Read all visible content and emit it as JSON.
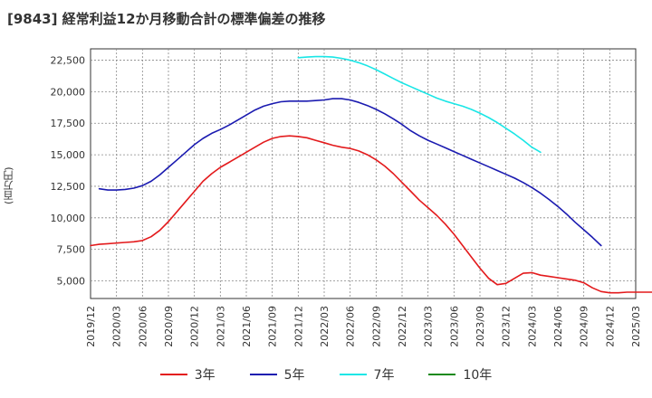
{
  "chart_data": {
    "type": "line",
    "title": "[9843]  経常利益12か月移動合計の標準偏差の推移",
    "ylabel": "(百万円)",
    "xlabel": "",
    "ylim": [
      3600,
      23400
    ],
    "y_ticks": [
      5000,
      7500,
      10000,
      12500,
      15000,
      17500,
      20000,
      22500
    ],
    "y_tick_labels": [
      "5,000",
      "7,500",
      "10,000",
      "12,500",
      "15,000",
      "17,500",
      "20,000",
      "22,500"
    ],
    "x_ticks": [
      "2019/12",
      "2020/03",
      "2020/06",
      "2020/09",
      "2020/12",
      "2021/03",
      "2021/06",
      "2021/09",
      "2021/12",
      "2022/03",
      "2022/06",
      "2022/09",
      "2022/12",
      "2023/03",
      "2023/06",
      "2023/09",
      "2023/12",
      "2024/03",
      "2024/06",
      "2024/09",
      "2024/12",
      "2025/03"
    ],
    "grid": true,
    "legend_position": "bottom",
    "x_start": "2019/12",
    "series": [
      {
        "name": "3年",
        "color": "#e31a1c",
        "start": "2019/12",
        "values": [
          7800,
          7900,
          7950,
          8000,
          8050,
          8100,
          8200,
          8500,
          9000,
          9700,
          10500,
          11300,
          12100,
          12900,
          13500,
          14000,
          14400,
          14800,
          15200,
          15600,
          16000,
          16300,
          16450,
          16500,
          16450,
          16350,
          16150,
          15950,
          15750,
          15600,
          15500,
          15300,
          15000,
          14600,
          14100,
          13500,
          12800,
          12100,
          11400,
          10800,
          10200,
          9500,
          8700,
          7800,
          6900,
          6000,
          5200,
          4700,
          4800,
          5200,
          5600,
          5650,
          5450,
          5350,
          5250,
          5150,
          5050,
          4850,
          4450,
          4150,
          4050,
          4050,
          4100,
          4100,
          4100,
          4100
        ]
      },
      {
        "name": "5年",
        "color": "#1a1ab0",
        "start": "2020/01",
        "values": [
          12300,
          12200,
          12200,
          12250,
          12350,
          12550,
          12900,
          13400,
          14000,
          14600,
          15200,
          15800,
          16300,
          16700,
          17000,
          17350,
          17750,
          18150,
          18550,
          18850,
          19050,
          19200,
          19250,
          19250,
          19250,
          19300,
          19350,
          19450,
          19450,
          19350,
          19150,
          18900,
          18600,
          18250,
          17850,
          17400,
          16900,
          16500,
          16150,
          15850,
          15550,
          15250,
          14950,
          14650,
          14350,
          14050,
          13750,
          13450,
          13150,
          12800,
          12400,
          11950,
          11450,
          10900,
          10300,
          9650,
          9050,
          8450,
          7800
        ]
      },
      {
        "name": "7年",
        "color": "#1ae6e6",
        "start": "2021/12",
        "values": [
          22700,
          22750,
          22780,
          22780,
          22750,
          22650,
          22500,
          22300,
          22050,
          21750,
          21400,
          21050,
          20700,
          20400,
          20100,
          19800,
          19500,
          19250,
          19050,
          18850,
          18600,
          18300,
          17950,
          17550,
          17100,
          16650,
          16150,
          15600,
          15200
        ]
      },
      {
        "name": "10年",
        "color": "#1a8a1a",
        "start": "2024/12",
        "values": []
      }
    ]
  }
}
